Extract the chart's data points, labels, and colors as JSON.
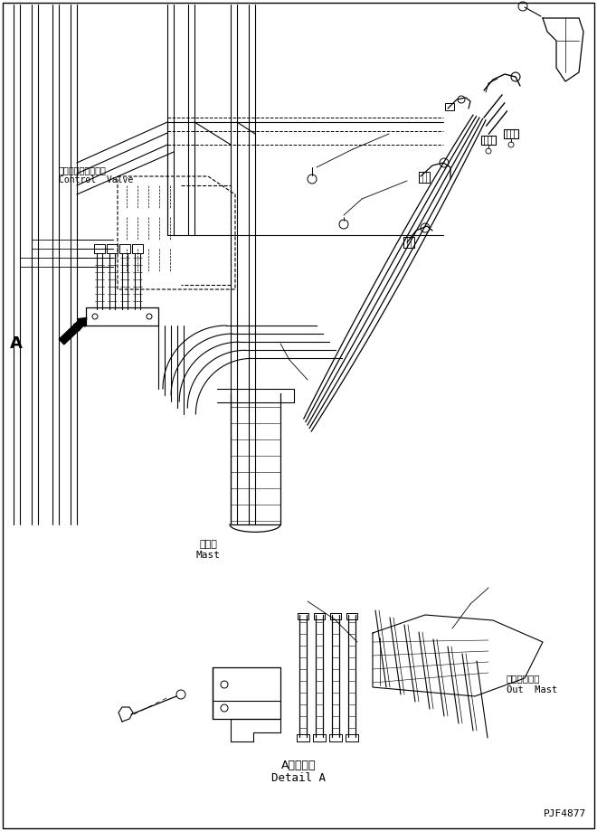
{
  "bg_color": "#ffffff",
  "line_color": "#000000",
  "fig_width": 6.6,
  "fig_height": 9.19,
  "dpi": 100,
  "label_control_valve_jp": "コントロールバルブ",
  "label_control_valve_en": "Control  Valve",
  "label_mast_jp": "マスト",
  "label_mast_en": "Mast",
  "label_out_mast_jp": "アウタマスト",
  "label_out_mast_en": "Out  Mast",
  "label_detail_jp": "A　詳　細",
  "label_detail_en": "Detail A",
  "label_A": "A",
  "part_number": "PJF4877"
}
